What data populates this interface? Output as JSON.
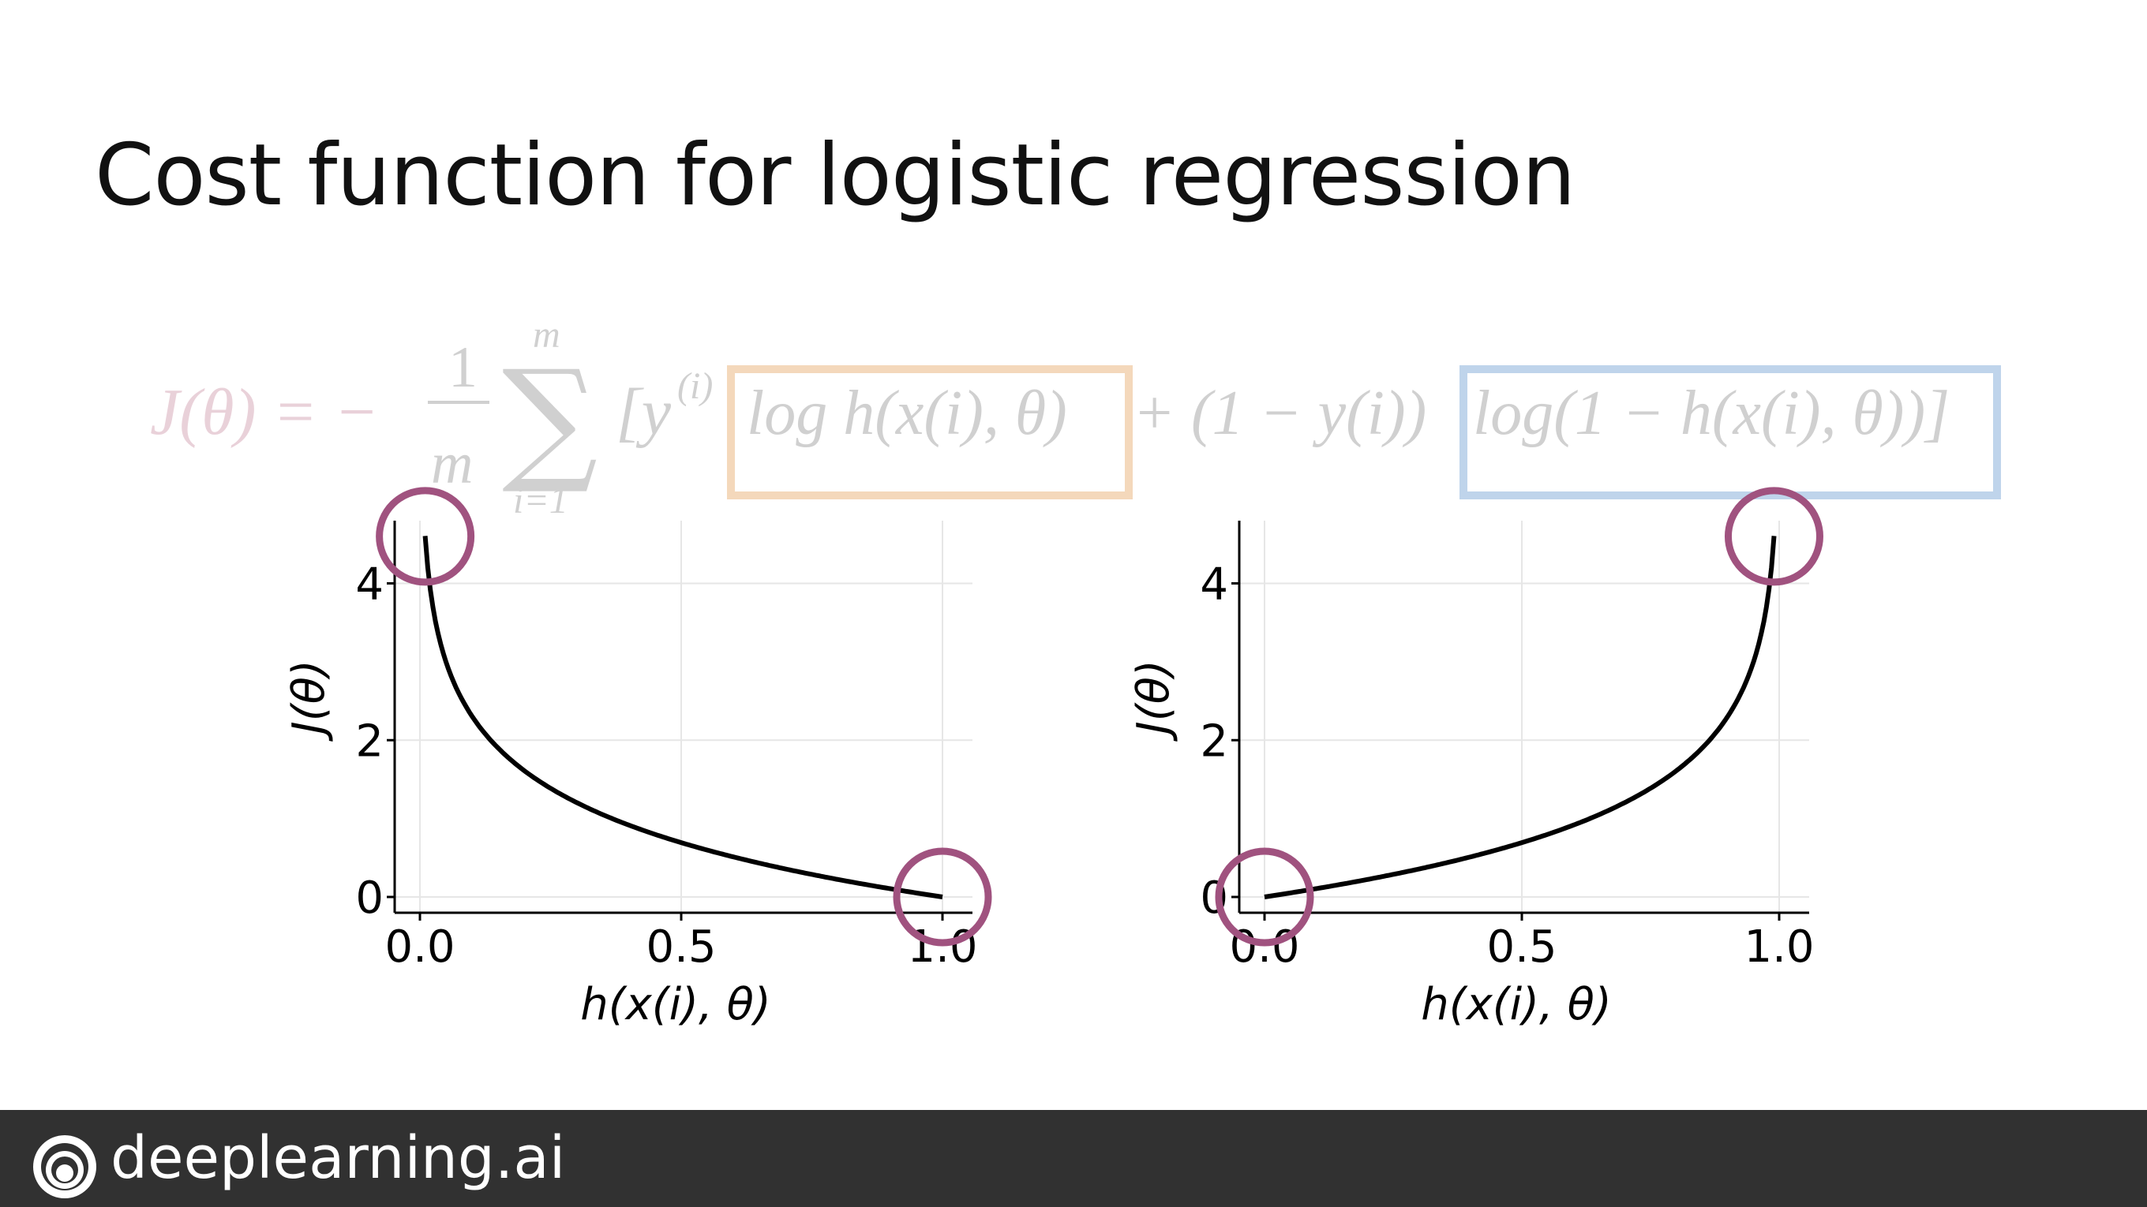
{
  "slide": {
    "title": "Cost function for logistic regression"
  },
  "formula": {
    "lhs": "J(θ) = −",
    "frac_num": "1",
    "frac_den": "m",
    "sum_upper": "m",
    "sum_lower": "i=1",
    "term_y": "[y",
    "sup_i": "(i)",
    "box1_text": "log h(x(i), θ)",
    "middle": "+ (1 − y(i))",
    "box2_text": "log(1 − h(x(i), θ))]"
  },
  "colors": {
    "curve": "#000000",
    "highlight_circle": "#a0527f",
    "box_orange": "#f3d2b0",
    "box_blue": "#b5cde8",
    "formula_lhs": "#e6c9d3",
    "footer_bg": "#313131"
  },
  "footer": {
    "brand": "deeplearning.ai",
    "logo_icon": "deeplearning-logo-icon"
  },
  "chart_data": [
    {
      "type": "line",
      "title": "",
      "xlabel": "h(x(i), θ)",
      "ylabel": "J(θ)",
      "xlim": [
        0.0,
        1.0
      ],
      "ylim": [
        0,
        4.8
      ],
      "x_ticks": [
        "0.0",
        "0.5",
        "1.0"
      ],
      "y_ticks": [
        "0",
        "2",
        "4"
      ],
      "grid": true,
      "series": [
        {
          "function": "-log(h)",
          "x": [
            0.01,
            0.02,
            0.05,
            0.1,
            0.2,
            0.3,
            0.4,
            0.5,
            0.6,
            0.7,
            0.8,
            0.9,
            1.0
          ],
          "values": [
            4.6,
            3.91,
            3.0,
            2.3,
            1.61,
            1.2,
            0.92,
            0.69,
            0.51,
            0.36,
            0.22,
            0.11,
            0.0
          ]
        }
      ],
      "highlights": [
        {
          "x": 0.01,
          "y": 4.6
        },
        {
          "x": 1.0,
          "y": 0.0
        }
      ]
    },
    {
      "type": "line",
      "title": "",
      "xlabel": "h(x(i), θ)",
      "ylabel": "J(θ)",
      "xlim": [
        0.0,
        1.0
      ],
      "ylim": [
        0,
        4.8
      ],
      "x_ticks": [
        "0.0",
        "0.5",
        "1.0"
      ],
      "y_ticks": [
        "0",
        "2",
        "4"
      ],
      "grid": true,
      "series": [
        {
          "function": "-log(1-h)",
          "x": [
            0.0,
            0.1,
            0.2,
            0.3,
            0.4,
            0.5,
            0.6,
            0.7,
            0.8,
            0.9,
            0.95,
            0.98,
            0.99
          ],
          "values": [
            0.0,
            0.11,
            0.22,
            0.36,
            0.51,
            0.69,
            0.92,
            1.2,
            1.61,
            2.3,
            3.0,
            3.91,
            4.6
          ]
        }
      ],
      "highlights": [
        {
          "x": 0.0,
          "y": 0.0
        },
        {
          "x": 0.99,
          "y": 4.6
        }
      ]
    }
  ]
}
